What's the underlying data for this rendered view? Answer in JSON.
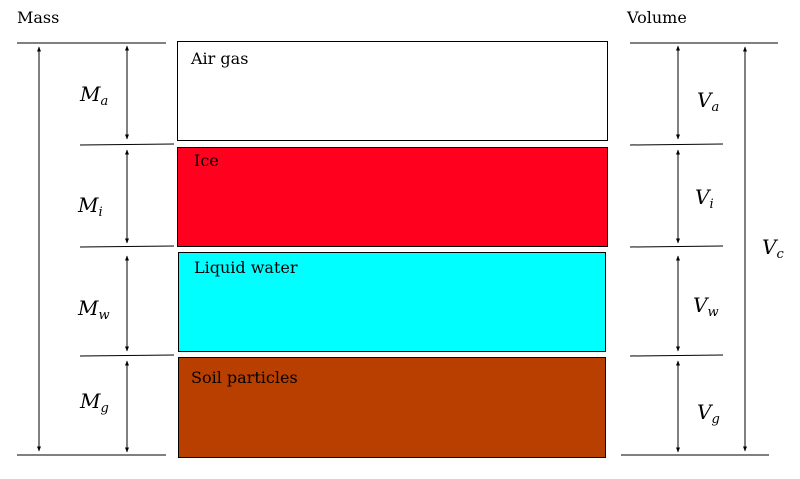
{
  "headers": {
    "mass": "Mass",
    "volume": "Volume"
  },
  "layers": [
    {
      "label": "Air gas",
      "color": "#ffffff"
    },
    {
      "label": "Ice",
      "color": "#ff001e"
    },
    {
      "label": "Liquid water",
      "color": "#00ffff"
    },
    {
      "label": "Soil particles",
      "color": "#b93f00"
    }
  ],
  "mass_symbols": [
    {
      "base": "M",
      "sub": "a"
    },
    {
      "base": "M",
      "sub": "i"
    },
    {
      "base": "M",
      "sub": "w"
    },
    {
      "base": "M",
      "sub": "g"
    }
  ],
  "volume_symbols": [
    {
      "base": "V",
      "sub": "a"
    },
    {
      "base": "V",
      "sub": "i"
    },
    {
      "base": "V",
      "sub": "w"
    },
    {
      "base": "V",
      "sub": "g"
    }
  ],
  "total_volume": {
    "base": "V",
    "sub": "c"
  }
}
